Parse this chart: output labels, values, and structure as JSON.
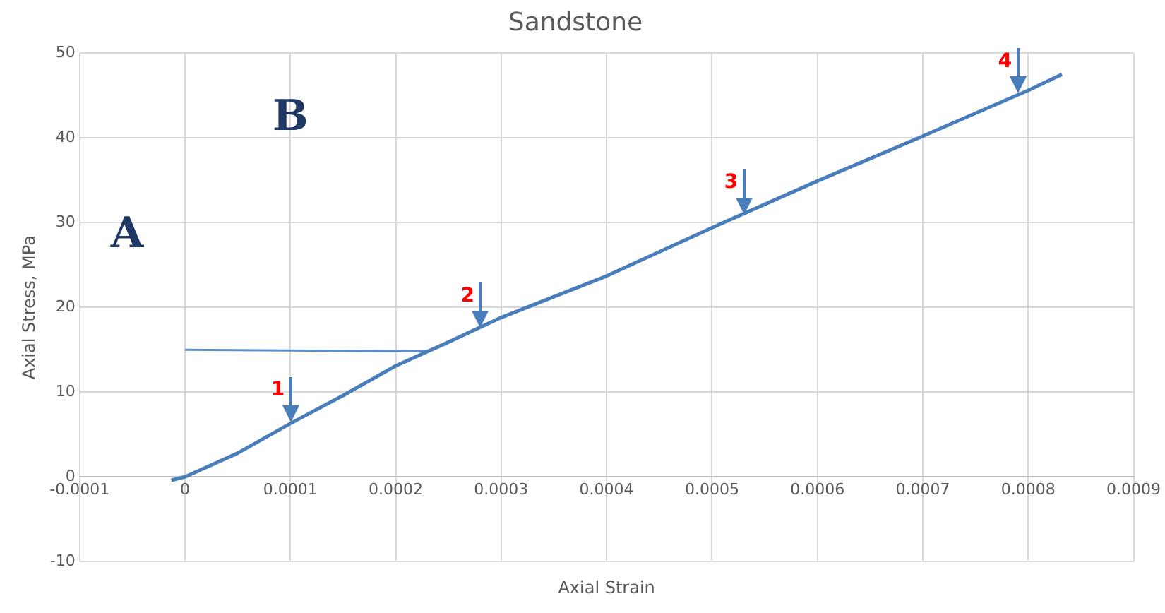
{
  "chart_data": {
    "type": "line",
    "title": "Sandstone",
    "xlabel": "Axial Strain",
    "ylabel": "Axial Stress, MPa",
    "x": [
      -1.3e-05,
      0,
      5e-05,
      0.0001,
      0.00015,
      0.0002,
      0.00025,
      0.0003,
      0.0004,
      0.0005,
      0.0006,
      0.0007,
      0.0008,
      0.000832
    ],
    "series": [
      {
        "color": "#4a7ebb",
        "values": [
          -0.4,
          0,
          2.8,
          6.3,
          9.6,
          13.1,
          15.9,
          18.8,
          23.7,
          29.4,
          34.9,
          40.2,
          45.6,
          47.5
        ]
      },
      {
        "type": "line",
        "color": "#5b8fcb",
        "x": [
          0,
          0.000231
        ],
        "values": [
          15,
          14.8
        ]
      }
    ],
    "xlim": [
      -0.0001,
      0.0009
    ],
    "xticks": [
      -0.0001,
      0,
      0.0001,
      0.0002,
      0.0003,
      0.0004,
      0.0005,
      0.0006,
      0.0007,
      0.0008,
      0.0009
    ],
    "ylim": [
      -10,
      50
    ],
    "yticks": [
      -10,
      0,
      10,
      20,
      30,
      40,
      50
    ],
    "grid": true,
    "legend": false,
    "marker": "none",
    "line_style": "solid",
    "annotations": [
      {
        "text": "1",
        "x": 0.0001,
        "y": 6.5
      },
      {
        "text": "2",
        "x": 0.00028,
        "y": 17.6
      },
      {
        "text": "3",
        "x": 0.00053,
        "y": 31
      },
      {
        "text": "4",
        "x": 0.00079,
        "y": 45.3
      },
      "A",
      "B"
    ]
  }
}
